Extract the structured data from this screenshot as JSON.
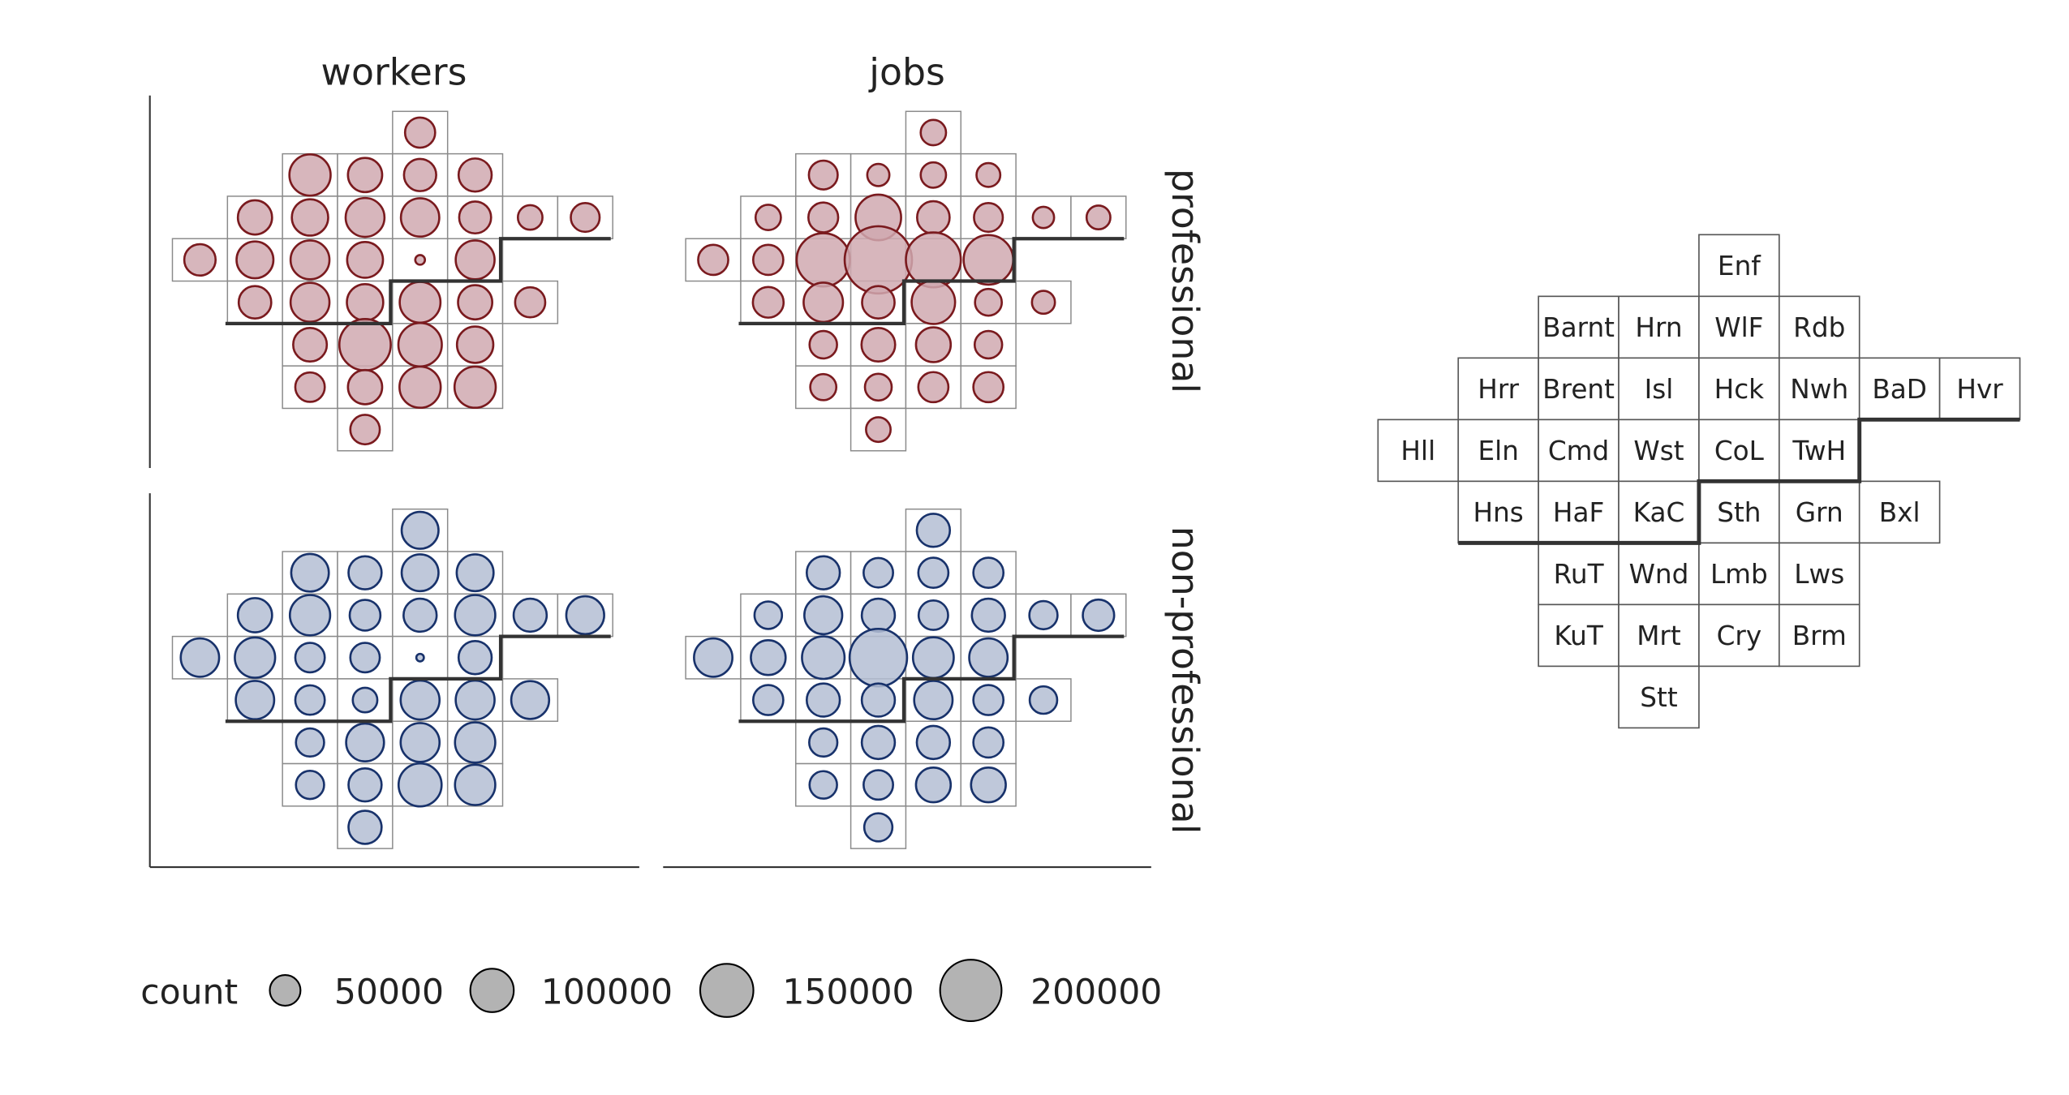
{
  "chart_data": {
    "type": "scatter",
    "columns": [
      "workers",
      "jobs"
    ],
    "rows": [
      "professional",
      "non-professional"
    ],
    "grid": [
      {
        "id": "Enf",
        "col": 4,
        "row": 0
      },
      {
        "id": "Barnt",
        "col": 2,
        "row": 1
      },
      {
        "id": "Hrn",
        "col": 3,
        "row": 1
      },
      {
        "id": "WlF",
        "col": 4,
        "row": 1
      },
      {
        "id": "Rdb",
        "col": 5,
        "row": 1
      },
      {
        "id": "Hrr",
        "col": 1,
        "row": 2
      },
      {
        "id": "Brent",
        "col": 2,
        "row": 2
      },
      {
        "id": "Isl",
        "col": 3,
        "row": 2
      },
      {
        "id": "Hck",
        "col": 4,
        "row": 2
      },
      {
        "id": "Nwh",
        "col": 5,
        "row": 2
      },
      {
        "id": "BaD",
        "col": 6,
        "row": 2
      },
      {
        "id": "Hvr",
        "col": 7,
        "row": 2
      },
      {
        "id": "Hll",
        "col": 0,
        "row": 3
      },
      {
        "id": "Eln",
        "col": 1,
        "row": 3
      },
      {
        "id": "Cmd",
        "col": 2,
        "row": 3
      },
      {
        "id": "Wst",
        "col": 3,
        "row": 3
      },
      {
        "id": "CoL",
        "col": 4,
        "row": 3
      },
      {
        "id": "TwH",
        "col": 5,
        "row": 3
      },
      {
        "id": "Hns",
        "col": 1,
        "row": 4
      },
      {
        "id": "HaF",
        "col": 2,
        "row": 4
      },
      {
        "id": "KaC",
        "col": 3,
        "row": 4
      },
      {
        "id": "Sth",
        "col": 4,
        "row": 4
      },
      {
        "id": "Grn",
        "col": 5,
        "row": 4
      },
      {
        "id": "Bxl",
        "col": 6,
        "row": 4
      },
      {
        "id": "RuT",
        "col": 2,
        "row": 5
      },
      {
        "id": "Wnd",
        "col": 3,
        "row": 5
      },
      {
        "id": "Lmb",
        "col": 4,
        "row": 5
      },
      {
        "id": "Lws",
        "col": 5,
        "row": 5
      },
      {
        "id": "KuT",
        "col": 2,
        "row": 6
      },
      {
        "id": "Mrt",
        "col": 3,
        "row": 6
      },
      {
        "id": "Cry",
        "col": 4,
        "row": 6
      },
      {
        "id": "Brm",
        "col": 5,
        "row": 6
      },
      {
        "id": "Stt",
        "col": 3,
        "row": 7
      }
    ],
    "series": [
      {
        "facet": "workers/professional",
        "color": "#7a1a1e",
        "fill": "#d0a9b0",
        "values": {
          "Enf": 48000,
          "Barnt": 90000,
          "Hrn": 62000,
          "WlF": 55000,
          "Rdb": 58000,
          "Hrr": 62000,
          "Brent": 70000,
          "Isl": 80000,
          "Hck": 78000,
          "Nwh": 54000,
          "BaD": 32000,
          "Hvr": 44000,
          "Hll": 52000,
          "Eln": 72000,
          "Cmd": 80000,
          "Wst": 68000,
          "CoL": 5000,
          "TwH": 80000,
          "Hns": 56000,
          "HaF": 80000,
          "KaC": 70000,
          "Sth": 88000,
          "Grn": 62000,
          "Bxl": 48000,
          "RuT": 60000,
          "Wnd": 140000,
          "Lmb": 100000,
          "Lws": 70000,
          "KuT": 46000,
          "Mrt": 62000,
          "Cry": 90000,
          "Brm": 90000,
          "Stt": 46000
        }
      },
      {
        "facet": "jobs/professional",
        "color": "#7a1a1e",
        "fill": "#d0a9b0",
        "values": {
          "Enf": 34000,
          "Barnt": 44000,
          "Hrn": 26000,
          "WlF": 34000,
          "Rdb": 30000,
          "Hrr": 34000,
          "Brent": 47000,
          "Isl": 110000,
          "Hck": 56000,
          "Nwh": 44000,
          "BaD": 24000,
          "Hvr": 30000,
          "Hll": 48000,
          "Eln": 48000,
          "Cmd": 150000,
          "Wst": 240000,
          "CoL": 160000,
          "TwH": 130000,
          "Hns": 50000,
          "HaF": 82000,
          "KaC": 56000,
          "Sth": 100000,
          "Grn": 38000,
          "Bxl": 28000,
          "RuT": 40000,
          "Wnd": 60000,
          "Lmb": 64000,
          "Lws": 40000,
          "KuT": 36000,
          "Mrt": 38000,
          "Cry": 48000,
          "Brm": 48000,
          "Stt": 32000
        }
      },
      {
        "facet": "workers/non-professional",
        "color": "#18326b",
        "fill": "#b4bed4",
        "values": {
          "Enf": 72000,
          "Barnt": 75000,
          "Hrn": 58000,
          "WlF": 72000,
          "Rdb": 72000,
          "Hrr": 62000,
          "Brent": 86000,
          "Isl": 50000,
          "Hck": 58000,
          "Nwh": 86000,
          "BaD": 58000,
          "Hvr": 76000,
          "Hll": 78000,
          "Eln": 86000,
          "Cmd": 46000,
          "Wst": 46000,
          "CoL": 3000,
          "TwH": 58000,
          "Hns": 78000,
          "HaF": 46000,
          "KaC": 32000,
          "Sth": 80000,
          "Grn": 80000,
          "Bxl": 76000,
          "RuT": 42000,
          "Wnd": 76000,
          "Lmb": 80000,
          "Lws": 86000,
          "KuT": 42000,
          "Mrt": 58000,
          "Cry": 98000,
          "Brm": 86000,
          "Stt": 58000
        }
      },
      {
        "facet": "jobs/non-professional",
        "color": "#18326b",
        "fill": "#b4bed4",
        "values": {
          "Enf": 58000,
          "Barnt": 58000,
          "Hrn": 46000,
          "WlF": 48000,
          "Rdb": 48000,
          "Hrr": 40000,
          "Brent": 76000,
          "Isl": 58000,
          "Hck": 46000,
          "Nwh": 58000,
          "BaD": 42000,
          "Hvr": 52000,
          "Hll": 78000,
          "Eln": 64000,
          "Cmd": 96000,
          "Wst": 175000,
          "CoL": 88000,
          "TwH": 78000,
          "Hns": 48000,
          "HaF": 58000,
          "KaC": 58000,
          "Sth": 78000,
          "Grn": 48000,
          "Bxl": 40000,
          "RuT": 42000,
          "Wnd": 58000,
          "Lmb": 58000,
          "Lws": 48000,
          "KuT": 40000,
          "Mrt": 46000,
          "Cry": 64000,
          "Brm": 64000,
          "Stt": 42000
        }
      }
    ],
    "legend": {
      "title": "count",
      "values": [
        50000,
        100000,
        150000,
        200000
      ],
      "labels": [
        "50000",
        "100000",
        "150000",
        "200000"
      ],
      "fill": "#b3b3b3",
      "stroke": "#000000",
      "position": "bottom-left"
    },
    "key_map_position": "right",
    "grid_lines": false
  }
}
